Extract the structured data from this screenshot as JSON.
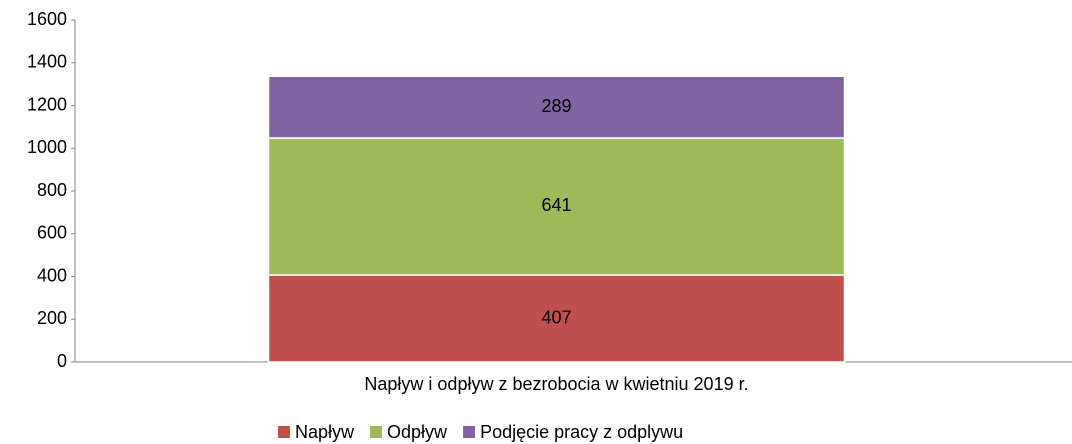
{
  "chart_data": {
    "type": "stacked_bar",
    "categories": [
      "Napływ i odpływ z bezrobocia w kwietniu 2019 r."
    ],
    "series": [
      {
        "name": "Napływ",
        "color": "#c0504d",
        "values": [
          407
        ]
      },
      {
        "name": "Odpływ",
        "color": "#9bbb59",
        "values": [
          641
        ]
      },
      {
        "name": "Podjęcie pracy z odplywu",
        "color": "#8064a2",
        "values": [
          289
        ]
      }
    ],
    "ylim": [
      0,
      1600
    ],
    "yticks": [
      0,
      200,
      400,
      600,
      800,
      1000,
      1200,
      1400,
      1600
    ],
    "grid": false,
    "legend": "bottom"
  }
}
